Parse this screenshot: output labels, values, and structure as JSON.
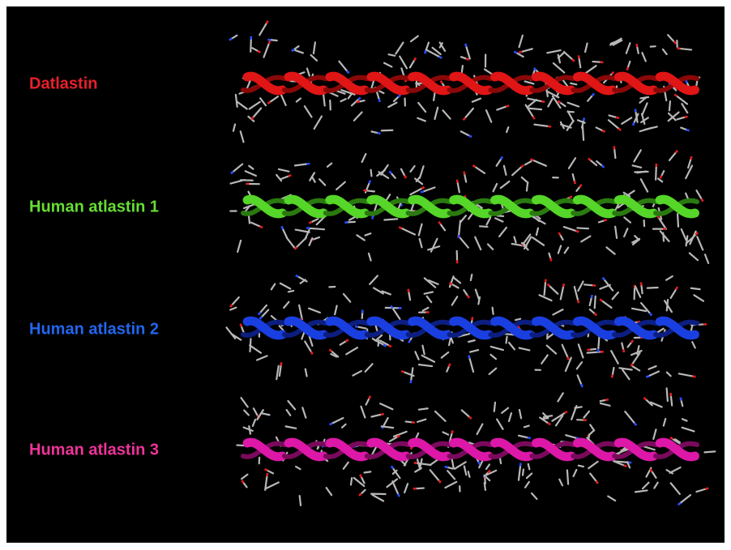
{
  "panels": [
    {
      "label": "Datlastin"
    },
    {
      "label": "Human atlastin 1"
    },
    {
      "label": "Human atlastin 2"
    },
    {
      "label": "Human atlastin 3"
    }
  ]
}
